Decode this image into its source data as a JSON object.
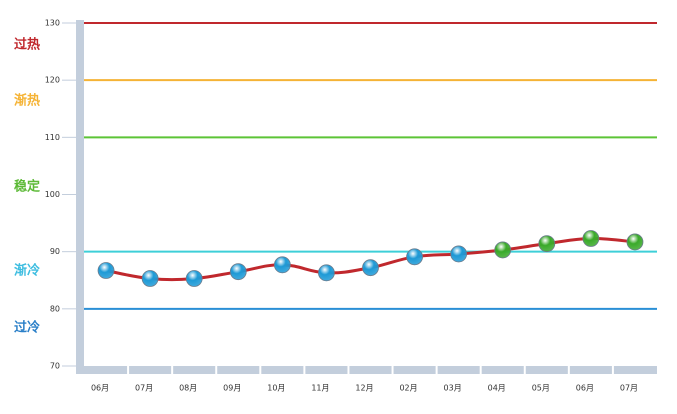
{
  "chart_data": {
    "type": "line",
    "categories": [
      "06月",
      "07月",
      "08月",
      "09月",
      "10月",
      "11月",
      "12月",
      "02月",
      "03月",
      "04月",
      "05月",
      "06月",
      "07月"
    ],
    "series": [
      {
        "color": "#c0282d",
        "values": [
          86.7,
          85.3,
          85.3,
          86.5,
          87.7,
          86.3,
          87.2,
          89.1,
          89.6,
          90.3,
          91.4,
          92.3,
          91.7
        ],
        "marker_colors": [
          "#1e9ad6",
          "#1e9ad6",
          "#1e9ad6",
          "#1e9ad6",
          "#1e9ad6",
          "#1e9ad6",
          "#1e9ad6",
          "#1e9ad6",
          "#1e9ad6",
          "#3aaa2a",
          "#3aaa2a",
          "#3aaa2a",
          "#3aaa2a"
        ]
      }
    ],
    "ylim": [
      70,
      130
    ],
    "yticks": [
      70,
      80,
      90,
      100,
      110,
      120,
      130
    ],
    "reference_lines": [
      {
        "value": 130,
        "color": "#c0282d"
      },
      {
        "value": 120,
        "color": "#f5b335"
      },
      {
        "value": 110,
        "color": "#5cc436"
      },
      {
        "value": 90,
        "color": "#3dcfd8"
      },
      {
        "value": 80,
        "color": "#2a8fd6"
      }
    ],
    "zones": [
      {
        "label": "过热",
        "color": "#c0282d"
      },
      {
        "label": "渐热",
        "color": "#f5b335"
      },
      {
        "label": "稳定",
        "color": "#5cb936"
      },
      {
        "label": "渐冷",
        "color": "#3dbde0"
      },
      {
        "label": "过冷",
        "color": "#2a7fc8"
      }
    ]
  }
}
